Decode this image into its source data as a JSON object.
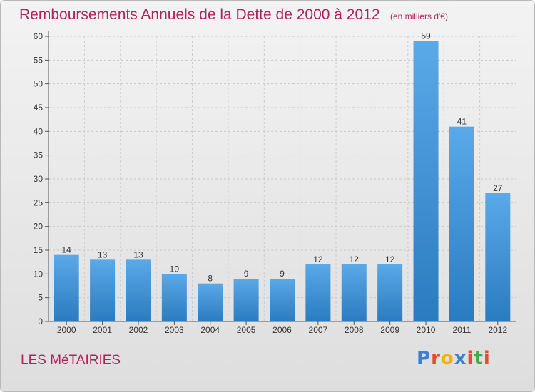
{
  "header": {
    "title": "Remboursements Annuels de la Dette de 2000 à 2012",
    "subtitle": "(en milliers d'€)"
  },
  "footer": {
    "commune": "LES MéTAIRIES",
    "logo_letters": [
      {
        "char": "P",
        "color": "#3f7fd0"
      },
      {
        "char": "r",
        "color": "#e84b2a"
      },
      {
        "char": "o",
        "color": "#f0b400"
      },
      {
        "char": "x",
        "color": "#3f7fd0"
      },
      {
        "char": "i",
        "color": "#e84b2a"
      },
      {
        "char": "t",
        "color": "#3fae49"
      },
      {
        "char": "i",
        "color": "#e84b2a"
      }
    ]
  },
  "chart_data": {
    "type": "bar",
    "categories": [
      "2000",
      "2001",
      "2002",
      "2003",
      "2004",
      "2005",
      "2006",
      "2007",
      "2008",
      "2009",
      "2010",
      "2011",
      "2012"
    ],
    "values": [
      14,
      13,
      13,
      10,
      8,
      9,
      9,
      12,
      12,
      12,
      59,
      41,
      27
    ],
    "ylim": [
      0,
      60
    ],
    "yticks": [
      0,
      5,
      10,
      15,
      20,
      25,
      30,
      35,
      40,
      45,
      50,
      55,
      60
    ],
    "grid": true,
    "bar_color_top": "#5aa9e8",
    "bar_color_bottom": "#2a7bc0"
  }
}
